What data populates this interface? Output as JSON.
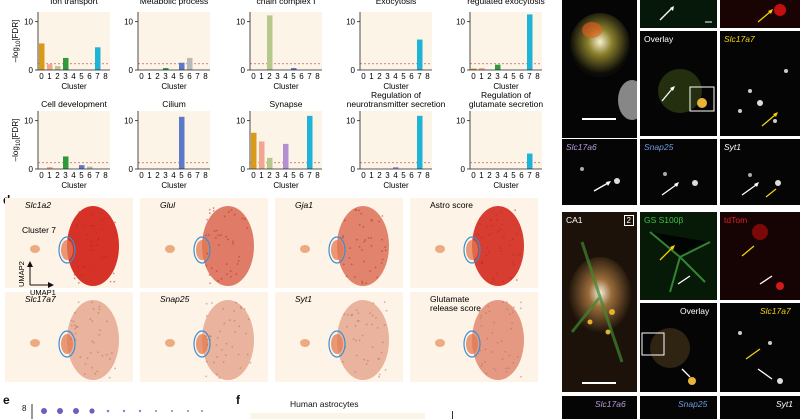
{
  "chart_data": [
    {
      "type": "bar",
      "title": "Ion transport",
      "xlabel": "Cluster",
      "ylabel": "-log10[FDR]",
      "categories": [
        "0",
        "1",
        "2",
        "3",
        "4",
        "5",
        "6",
        "7",
        "8"
      ],
      "values": [
        5.5,
        1.2,
        0.8,
        2.5,
        0,
        0,
        0,
        4.7,
        0
      ],
      "ylim": [
        0,
        12
      ]
    },
    {
      "type": "bar",
      "title": "Metabolic process",
      "xlabel": "Cluster",
      "ylabel": "-log10[FDR]",
      "categories": [
        "0",
        "1",
        "2",
        "3",
        "4",
        "5",
        "6",
        "7",
        "8"
      ],
      "values": [
        0,
        0,
        0,
        0.4,
        0,
        1.5,
        2.5,
        0,
        0
      ],
      "ylim": [
        0,
        12
      ]
    },
    {
      "type": "bar",
      "title": "Chain complex I",
      "xlabel": "Cluster",
      "ylabel": "-log10[FDR]",
      "categories": [
        "0",
        "1",
        "2",
        "3",
        "4",
        "5",
        "6",
        "7",
        "8"
      ],
      "values": [
        0,
        0,
        11.3,
        0,
        0,
        0.4,
        0,
        0,
        0
      ],
      "ylim": [
        0,
        12
      ]
    },
    {
      "type": "bar",
      "title": "Exocytosis",
      "xlabel": "Cluster",
      "ylabel": "-log10[FDR]",
      "categories": [
        "0",
        "1",
        "2",
        "3",
        "4",
        "5",
        "6",
        "7",
        "8"
      ],
      "values": [
        0,
        0,
        0,
        0,
        0,
        0,
        0,
        6.3,
        0
      ],
      "ylim": [
        0,
        12
      ]
    },
    {
      "type": "bar",
      "title": "Regulated exocytosis",
      "xlabel": "Cluster",
      "ylabel": "-log10[FDR]",
      "categories": [
        "0",
        "1",
        "2",
        "3",
        "4",
        "5",
        "6",
        "7",
        "8"
      ],
      "values": [
        0.3,
        0.4,
        0,
        1.1,
        0,
        0,
        0,
        11.5,
        0
      ],
      "ylim": [
        0,
        12
      ]
    },
    {
      "type": "bar",
      "title": "Cell development",
      "xlabel": "Cluster",
      "ylabel": "-log10[FDR]",
      "categories": [
        "0",
        "1",
        "2",
        "3",
        "4",
        "5",
        "6",
        "7",
        "8"
      ],
      "values": [
        0,
        0.4,
        0,
        2.6,
        0,
        0.8,
        0.5,
        0,
        0
      ],
      "ylim": [
        0,
        12
      ]
    },
    {
      "type": "bar",
      "title": "Cilium",
      "xlabel": "Cluster",
      "ylabel": "-log10[FDR]",
      "categories": [
        "0",
        "1",
        "2",
        "3",
        "4",
        "5",
        "6",
        "7",
        "8"
      ],
      "values": [
        0,
        0,
        0,
        0,
        0,
        10.8,
        0,
        0,
        0
      ],
      "ylim": [
        0,
        12
      ]
    },
    {
      "type": "bar",
      "title": "Synapse",
      "xlabel": "Cluster",
      "ylabel": "-log10[FDR]",
      "categories": [
        "0",
        "1",
        "2",
        "3",
        "4",
        "5",
        "6",
        "7",
        "8"
      ],
      "values": [
        7.5,
        5.7,
        2.3,
        0,
        5.2,
        0,
        0,
        11,
        0
      ],
      "ylim": [
        0,
        12
      ]
    },
    {
      "type": "bar",
      "title": "Regulation of neurotransmitter secretion",
      "xlabel": "Cluster",
      "ylabel": "-log10[FDR]",
      "categories": [
        "0",
        "1",
        "2",
        "3",
        "4",
        "5",
        "6",
        "7",
        "8"
      ],
      "values": [
        0,
        0,
        0,
        0,
        0.4,
        0,
        0,
        11,
        0
      ],
      "ylim": [
        0,
        12
      ]
    },
    {
      "type": "bar",
      "title": "Regulation of glutamate secretion",
      "xlabel": "Cluster",
      "ylabel": "-log10[FDR]",
      "categories": [
        "0",
        "1",
        "2",
        "3",
        "4",
        "5",
        "6",
        "7",
        "8"
      ],
      "values": [
        0,
        0,
        0,
        0,
        0,
        0,
        0,
        3.2,
        0
      ],
      "ylim": [
        0,
        12
      ]
    }
  ],
  "bar_colors": [
    "#d99a17",
    "#f3a58f",
    "#b6c98a",
    "#2e9a3a",
    "#b38fd4",
    "#5a79c8",
    "#b9b9b9",
    "#1fb3d8",
    "#7a7a7a"
  ],
  "panel_bg": "#fdf4e8",
  "titles_top": [
    "Ion transport",
    "Metabolic process",
    "chain complex I",
    "Exocytosis",
    "regulated exocytosis"
  ],
  "titles_bottom": [
    "Cell development",
    "Cilium",
    "Synapse",
    "Regulation of\nneurotransmitter secretion",
    "Regulation of\nglutamate secretion"
  ],
  "axis": {
    "ylabel_prefix": "–log",
    "ylabel_sub": "10",
    "ylabel_suffix": "[FDR]",
    "y_tick_10": "10",
    "y_tick_0": "0",
    "x_ticks": "0 1 2 3 4 5 6 7 8",
    "xlabel": "Cluster"
  },
  "panel_d": {
    "letter": "d",
    "cluster_label": "Cluster 7",
    "umap1": "UMAP1",
    "umap2": "UMAP2",
    "top": [
      "Slc1a2",
      "Glul",
      "Gja1",
      "Astro score"
    ],
    "bottom": [
      "Slc17a7",
      "Snap25",
      "Syt1",
      "Glutamate\nrelease score"
    ]
  },
  "panel_e": {
    "letter": "e",
    "y_tick": "8"
  },
  "panel_f": {
    "letter": "f",
    "title": "Human astrocytes"
  },
  "micro": {
    "overlay": "Overlay",
    "slc17a7": "Slc17a7",
    "slc17a6": "Slc17a6",
    "snap25": "Snap25",
    "syt1": "Syt1",
    "ca1": "CA1",
    "box_num": "2",
    "gs_s100b": "GS S100β",
    "tdtom": "tdTom",
    "bottom_slc17a6": "Slc17a6",
    "bottom_snap25": "Snap25",
    "bottom_syt1": "Syt1"
  }
}
